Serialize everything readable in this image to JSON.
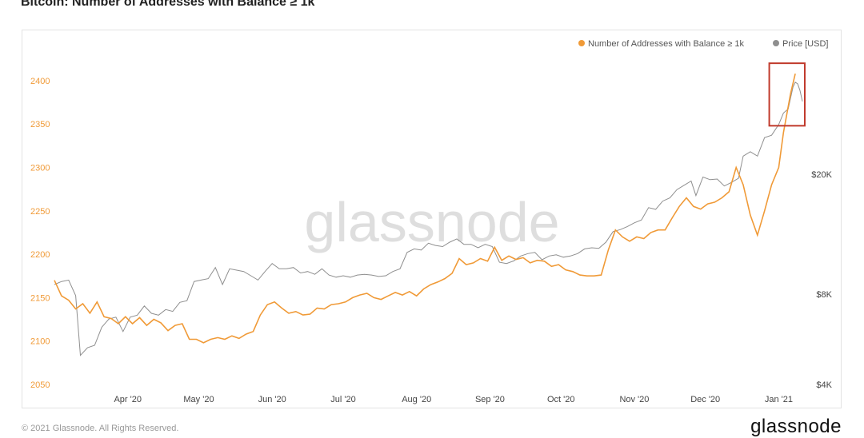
{
  "page": {
    "title": "Bitcoin: Number of Addresses with Balance ≥ 1k",
    "footer_copyright": "© 2021 Glassnode. All Rights Reserved.",
    "footer_logo": "glassnode",
    "watermark": "glassnode"
  },
  "chart_data": {
    "type": "line",
    "title": "Bitcoin: Number of Addresses with Balance ≥ 1k",
    "legend_position": "top-right",
    "grid": false,
    "x_ticks": [
      "Apr '20",
      "May '20",
      "Jun '20",
      "Jul '20",
      "Aug '20",
      "Sep '20",
      "Oct '20",
      "Nov '20",
      "Dec '20",
      "Jan '21"
    ],
    "x_range": [
      "2020-03-01",
      "2021-01-11"
    ],
    "y_left": {
      "ticks": [
        2050,
        2100,
        2150,
        2200,
        2250,
        2300,
        2350,
        2400
      ],
      "range": [
        2050,
        2410
      ]
    },
    "y_right": {
      "scale": "log",
      "ticks": [
        "$4K",
        "$8K",
        "$20K"
      ],
      "tick_values": [
        4000,
        8000,
        20000
      ]
    },
    "colors": {
      "addresses": "#f09a37",
      "price": "#8f8f8f",
      "highlight": "#c0392b",
      "left_ticks": "#f09a37",
      "right_ticks": "#444444"
    },
    "highlight_box": {
      "x_from": "2020-12-28",
      "x_to": "2021-01-12",
      "y_from": 2348,
      "y_to": 2420
    },
    "series": [
      {
        "name": "Number of Addresses with Balance ≥ 1k",
        "axis": "left",
        "points": [
          [
            "2020-03-01",
            2170
          ],
          [
            "2020-03-04",
            2152
          ],
          [
            "2020-03-07",
            2147
          ],
          [
            "2020-03-10",
            2137
          ],
          [
            "2020-03-13",
            2143
          ],
          [
            "2020-03-16",
            2132
          ],
          [
            "2020-03-19",
            2145
          ],
          [
            "2020-03-22",
            2128
          ],
          [
            "2020-03-25",
            2126
          ],
          [
            "2020-03-28",
            2120
          ],
          [
            "2020-03-31",
            2128
          ],
          [
            "2020-04-03",
            2120
          ],
          [
            "2020-04-06",
            2127
          ],
          [
            "2020-04-09",
            2118
          ],
          [
            "2020-04-12",
            2125
          ],
          [
            "2020-04-15",
            2121
          ],
          [
            "2020-04-18",
            2112
          ],
          [
            "2020-04-21",
            2118
          ],
          [
            "2020-04-24",
            2120
          ],
          [
            "2020-04-27",
            2102
          ],
          [
            "2020-04-30",
            2102
          ],
          [
            "2020-05-03",
            2098
          ],
          [
            "2020-05-06",
            2102
          ],
          [
            "2020-05-09",
            2104
          ],
          [
            "2020-05-12",
            2102
          ],
          [
            "2020-05-15",
            2106
          ],
          [
            "2020-05-18",
            2103
          ],
          [
            "2020-05-21",
            2108
          ],
          [
            "2020-05-24",
            2111
          ],
          [
            "2020-05-27",
            2130
          ],
          [
            "2020-05-30",
            2142
          ],
          [
            "2020-06-02",
            2145
          ],
          [
            "2020-06-05",
            2138
          ],
          [
            "2020-06-08",
            2132
          ],
          [
            "2020-06-11",
            2134
          ],
          [
            "2020-06-14",
            2130
          ],
          [
            "2020-06-17",
            2131
          ],
          [
            "2020-06-20",
            2138
          ],
          [
            "2020-06-23",
            2137
          ],
          [
            "2020-06-26",
            2142
          ],
          [
            "2020-06-29",
            2143
          ],
          [
            "2020-07-02",
            2145
          ],
          [
            "2020-07-05",
            2150
          ],
          [
            "2020-07-08",
            2153
          ],
          [
            "2020-07-11",
            2155
          ],
          [
            "2020-07-14",
            2150
          ],
          [
            "2020-07-17",
            2148
          ],
          [
            "2020-07-20",
            2152
          ],
          [
            "2020-07-23",
            2156
          ],
          [
            "2020-07-26",
            2153
          ],
          [
            "2020-07-29",
            2157
          ],
          [
            "2020-08-01",
            2152
          ],
          [
            "2020-08-04",
            2160
          ],
          [
            "2020-08-07",
            2165
          ],
          [
            "2020-08-10",
            2168
          ],
          [
            "2020-08-13",
            2172
          ],
          [
            "2020-08-16",
            2178
          ],
          [
            "2020-08-19",
            2195
          ],
          [
            "2020-08-22",
            2188
          ],
          [
            "2020-08-25",
            2190
          ],
          [
            "2020-08-28",
            2195
          ],
          [
            "2020-08-31",
            2192
          ],
          [
            "2020-09-03",
            2208
          ],
          [
            "2020-09-06",
            2193
          ],
          [
            "2020-09-09",
            2198
          ],
          [
            "2020-09-12",
            2194
          ],
          [
            "2020-09-15",
            2196
          ],
          [
            "2020-09-18",
            2190
          ],
          [
            "2020-09-21",
            2193
          ],
          [
            "2020-09-24",
            2192
          ],
          [
            "2020-09-27",
            2186
          ],
          [
            "2020-09-30",
            2188
          ],
          [
            "2020-10-03",
            2182
          ],
          [
            "2020-10-06",
            2180
          ],
          [
            "2020-10-09",
            2176
          ],
          [
            "2020-10-12",
            2175
          ],
          [
            "2020-10-15",
            2175
          ],
          [
            "2020-10-18",
            2176
          ],
          [
            "2020-10-21",
            2205
          ],
          [
            "2020-10-24",
            2228
          ],
          [
            "2020-10-27",
            2220
          ],
          [
            "2020-10-30",
            2215
          ],
          [
            "2020-11-02",
            2220
          ],
          [
            "2020-11-05",
            2218
          ],
          [
            "2020-11-08",
            2225
          ],
          [
            "2020-11-11",
            2228
          ],
          [
            "2020-11-14",
            2228
          ],
          [
            "2020-11-17",
            2242
          ],
          [
            "2020-11-20",
            2255
          ],
          [
            "2020-11-23",
            2265
          ],
          [
            "2020-11-26",
            2255
          ],
          [
            "2020-11-29",
            2252
          ],
          [
            "2020-12-02",
            2258
          ],
          [
            "2020-12-05",
            2260
          ],
          [
            "2020-12-08",
            2265
          ],
          [
            "2020-12-11",
            2272
          ],
          [
            "2020-12-14",
            2300
          ],
          [
            "2020-12-17",
            2280
          ],
          [
            "2020-12-20",
            2245
          ],
          [
            "2020-12-23",
            2222
          ],
          [
            "2020-12-26",
            2250
          ],
          [
            "2020-12-29",
            2280
          ],
          [
            "2021-01-01",
            2300
          ],
          [
            "2021-01-03",
            2340
          ],
          [
            "2021-01-06",
            2385
          ],
          [
            "2021-01-08",
            2408
          ]
        ]
      },
      {
        "name": "Price [USD]",
        "axis": "right",
        "points": [
          [
            "2020-03-01",
            8600
          ],
          [
            "2020-03-04",
            8800
          ],
          [
            "2020-03-07",
            8900
          ],
          [
            "2020-03-10",
            7900
          ],
          [
            "2020-03-12",
            5000
          ],
          [
            "2020-03-15",
            5300
          ],
          [
            "2020-03-18",
            5400
          ],
          [
            "2020-03-21",
            6200
          ],
          [
            "2020-03-24",
            6600
          ],
          [
            "2020-03-27",
            6700
          ],
          [
            "2020-03-30",
            6000
          ],
          [
            "2020-04-02",
            6700
          ],
          [
            "2020-04-05",
            6800
          ],
          [
            "2020-04-08",
            7300
          ],
          [
            "2020-04-11",
            6900
          ],
          [
            "2020-04-14",
            6800
          ],
          [
            "2020-04-17",
            7100
          ],
          [
            "2020-04-20",
            7000
          ],
          [
            "2020-04-23",
            7500
          ],
          [
            "2020-04-26",
            7600
          ],
          [
            "2020-04-29",
            8800
          ],
          [
            "2020-05-02",
            8900
          ],
          [
            "2020-05-05",
            9000
          ],
          [
            "2020-05-08",
            9800
          ],
          [
            "2020-05-11",
            8600
          ],
          [
            "2020-05-14",
            9700
          ],
          [
            "2020-05-17",
            9600
          ],
          [
            "2020-05-20",
            9500
          ],
          [
            "2020-05-23",
            9200
          ],
          [
            "2020-05-26",
            8900
          ],
          [
            "2020-05-29",
            9500
          ],
          [
            "2020-06-01",
            10100
          ],
          [
            "2020-06-04",
            9700
          ],
          [
            "2020-06-07",
            9700
          ],
          [
            "2020-06-10",
            9800
          ],
          [
            "2020-06-13",
            9400
          ],
          [
            "2020-06-16",
            9500
          ],
          [
            "2020-06-19",
            9300
          ],
          [
            "2020-06-22",
            9700
          ],
          [
            "2020-06-25",
            9250
          ],
          [
            "2020-06-28",
            9100
          ],
          [
            "2020-07-01",
            9200
          ],
          [
            "2020-07-04",
            9100
          ],
          [
            "2020-07-07",
            9250
          ],
          [
            "2020-07-10",
            9300
          ],
          [
            "2020-07-13",
            9250
          ],
          [
            "2020-07-16",
            9150
          ],
          [
            "2020-07-19",
            9200
          ],
          [
            "2020-07-22",
            9500
          ],
          [
            "2020-07-25",
            9700
          ],
          [
            "2020-07-28",
            11000
          ],
          [
            "2020-07-31",
            11300
          ],
          [
            "2020-08-03",
            11200
          ],
          [
            "2020-08-06",
            11800
          ],
          [
            "2020-08-09",
            11600
          ],
          [
            "2020-08-12",
            11500
          ],
          [
            "2020-08-15",
            11900
          ],
          [
            "2020-08-18",
            12200
          ],
          [
            "2020-08-21",
            11700
          ],
          [
            "2020-08-24",
            11700
          ],
          [
            "2020-08-27",
            11400
          ],
          [
            "2020-08-30",
            11700
          ],
          [
            "2020-09-02",
            11500
          ],
          [
            "2020-09-05",
            10200
          ],
          [
            "2020-09-08",
            10100
          ],
          [
            "2020-09-11",
            10300
          ],
          [
            "2020-09-14",
            10700
          ],
          [
            "2020-09-17",
            10900
          ],
          [
            "2020-09-20",
            11000
          ],
          [
            "2020-09-23",
            10400
          ],
          [
            "2020-09-26",
            10700
          ],
          [
            "2020-09-29",
            10800
          ],
          [
            "2020-10-02",
            10600
          ],
          [
            "2020-10-05",
            10700
          ],
          [
            "2020-10-08",
            10900
          ],
          [
            "2020-10-11",
            11300
          ],
          [
            "2020-10-14",
            11400
          ],
          [
            "2020-10-17",
            11350
          ],
          [
            "2020-10-20",
            11900
          ],
          [
            "2020-10-23",
            12900
          ],
          [
            "2020-10-26",
            13100
          ],
          [
            "2020-10-29",
            13400
          ],
          [
            "2020-11-01",
            13800
          ],
          [
            "2020-11-04",
            14100
          ],
          [
            "2020-11-07",
            15500
          ],
          [
            "2020-11-10",
            15300
          ],
          [
            "2020-11-13",
            16300
          ],
          [
            "2020-11-16",
            16700
          ],
          [
            "2020-11-19",
            17800
          ],
          [
            "2020-11-22",
            18400
          ],
          [
            "2020-11-25",
            19000
          ],
          [
            "2020-11-27",
            17000
          ],
          [
            "2020-11-30",
            19600
          ],
          [
            "2020-12-03",
            19200
          ],
          [
            "2020-12-06",
            19300
          ],
          [
            "2020-12-09",
            18300
          ],
          [
            "2020-12-12",
            18800
          ],
          [
            "2020-12-15",
            19400
          ],
          [
            "2020-12-17",
            23000
          ],
          [
            "2020-12-20",
            23800
          ],
          [
            "2020-12-23",
            23000
          ],
          [
            "2020-12-26",
            26500
          ],
          [
            "2020-12-29",
            27000
          ],
          [
            "2021-01-01",
            29300
          ],
          [
            "2021-01-03",
            32000
          ],
          [
            "2021-01-05",
            33000
          ],
          [
            "2021-01-07",
            39000
          ],
          [
            "2021-01-08",
            40500
          ],
          [
            "2021-01-09",
            40000
          ],
          [
            "2021-01-10",
            38000
          ],
          [
            "2021-01-11",
            35000
          ]
        ]
      }
    ]
  }
}
